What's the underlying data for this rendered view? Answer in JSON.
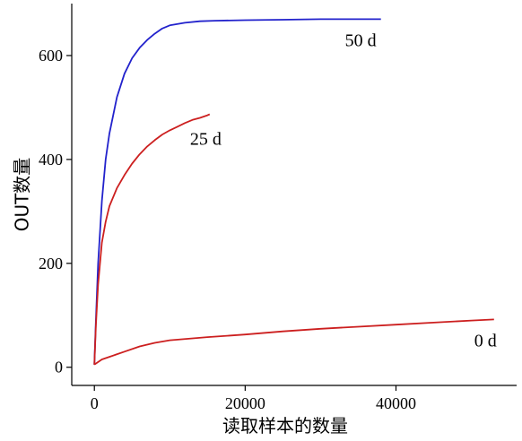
{
  "chart_data": {
    "type": "line",
    "xlabel": "读取样本的数量",
    "ylabel": "OUT数量",
    "xlim": [
      -3000,
      56000
    ],
    "ylim": [
      -35,
      700
    ],
    "x_ticks": [
      0,
      20000,
      40000
    ],
    "x_tick_labels": [
      "0",
      "20000",
      "40000"
    ],
    "y_ticks": [
      0,
      200,
      400,
      600
    ],
    "y_tick_labels": [
      "0",
      "200",
      "400",
      "600"
    ],
    "grid": false,
    "legend": "none",
    "series": [
      {
        "name": "50 d",
        "color": "#2222cc",
        "x": [
          0,
          200,
          500,
          1000,
          1500,
          2000,
          3000,
          4000,
          5000,
          6000,
          7000,
          8000,
          9000,
          10000,
          12000,
          14000,
          16000,
          20000,
          25000,
          30000,
          35000,
          38000
        ],
        "y": [
          5,
          90,
          200,
          320,
          400,
          450,
          520,
          565,
          595,
          615,
          630,
          642,
          652,
          658,
          663,
          666,
          667,
          668,
          669,
          670,
          670,
          670
        ]
      },
      {
        "name": "25 d",
        "color": "#cc1f1f",
        "x": [
          0,
          200,
          500,
          1000,
          1500,
          2000,
          3000,
          4000,
          5000,
          6000,
          7000,
          8000,
          9000,
          10000,
          11000,
          12000,
          13000,
          14000,
          15000,
          15300
        ],
        "y": [
          5,
          80,
          160,
          240,
          280,
          310,
          345,
          370,
          392,
          410,
          425,
          437,
          448,
          456,
          463,
          470,
          476,
          480,
          485,
          487
        ]
      },
      {
        "name": "0 d",
        "color": "#cc1f1f",
        "x": [
          0,
          1000,
          2000,
          4000,
          6000,
          8000,
          10000,
          15000,
          20000,
          25000,
          30000,
          35000,
          40000,
          45000,
          50000,
          53000
        ],
        "y": [
          5,
          15,
          20,
          30,
          40,
          47,
          52,
          58,
          63,
          69,
          74,
          78,
          82,
          86,
          90,
          92
        ]
      }
    ],
    "annotations": [
      "50 d",
      "25 d",
      "0 d"
    ]
  }
}
